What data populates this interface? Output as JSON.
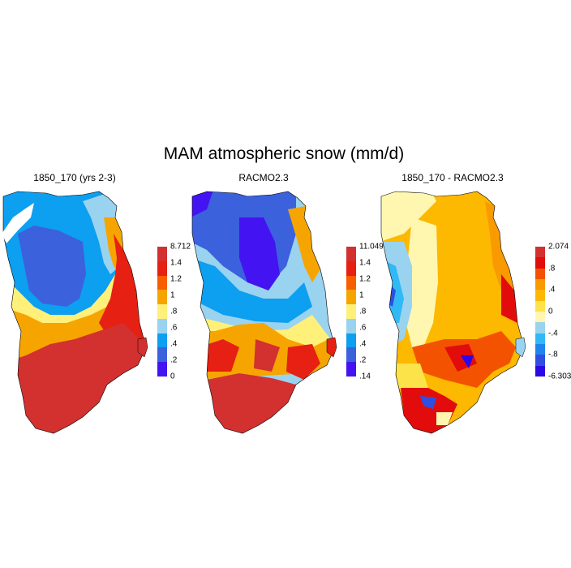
{
  "title": "MAM atmospheric snow (mm/d)",
  "colors": {
    "snow_scale": [
      "#4413f2",
      "#3b61dd",
      "#0d9ff0",
      "#9ad3ef",
      "#fff07a",
      "#f6a500",
      "#f85d00",
      "#e62012",
      "#d33030"
    ],
    "diff_scale": [
      "#2e07e8",
      "#2e4fe0",
      "#1f84f0",
      "#31b9f5",
      "#9ad3ef",
      "#fff7b0",
      "#fde34a",
      "#fdb800",
      "#f89a00",
      "#f35300",
      "#e20c0c",
      "#d33030"
    ]
  },
  "panels": [
    {
      "title": "1850_170 (yrs 2-3)",
      "scale": "snow_scale",
      "colorbar": {
        "max_label": "8.712",
        "labels": [
          "1.4",
          "1.2",
          "1",
          ".8",
          ".6",
          ".4",
          ".2",
          "0"
        ]
      }
    },
    {
      "title": "RACMO2.3",
      "scale": "snow_scale",
      "colorbar": {
        "max_label": "11.049",
        "labels": [
          "1.4",
          "1.2",
          "1",
          ".8",
          ".6",
          ".4",
          ".2",
          ".14"
        ]
      }
    },
    {
      "title": "1850_170 - RACMO2.3",
      "scale": "diff_scale",
      "colorbar": {
        "max_label": "2.074",
        "labels": [
          ".8",
          ".4",
          "0",
          "-.4",
          "-.8",
          "-6.303"
        ]
      }
    }
  ]
}
